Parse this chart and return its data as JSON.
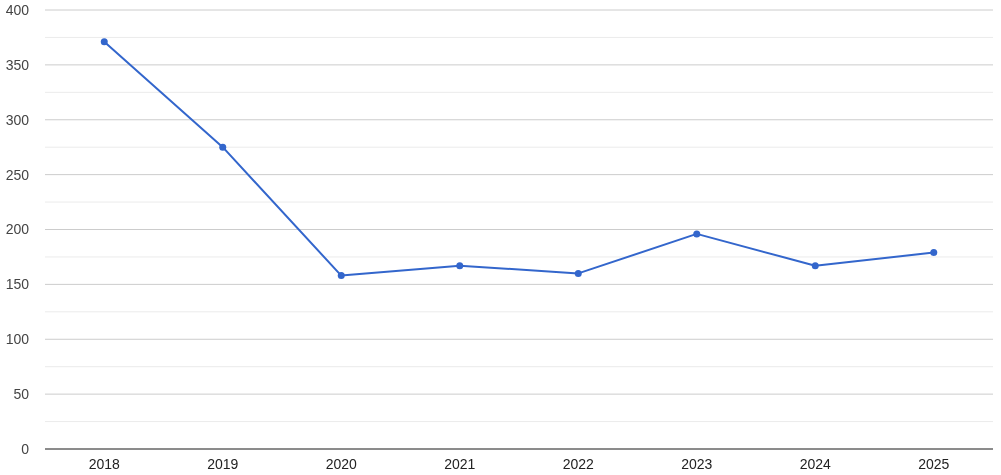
{
  "chart_data": {
    "type": "line",
    "categories": [
      "2018",
      "2019",
      "2020",
      "2021",
      "2022",
      "2023",
      "2024",
      "2025"
    ],
    "series": [
      {
        "color": "#3366cc",
        "values": [
          371,
          275,
          158,
          167,
          160,
          196,
          167,
          179
        ]
      }
    ],
    "ylim": [
      0,
      400
    ],
    "yticks": [
      0,
      {
        "value": 25,
        "label": null
      },
      50,
      {
        "value": 75,
        "label": null
      },
      100,
      {
        "value": 125,
        "label": null
      },
      150,
      {
        "value": 175,
        "label": null
      },
      200,
      {
        "value": 225,
        "label": null
      },
      250,
      {
        "value": 275,
        "label": null
      },
      300,
      {
        "value": 325,
        "label": null
      },
      350,
      {
        "value": 375,
        "label": null
      },
      400
    ],
    "grid": true,
    "marker": "circle",
    "line_style": "solid"
  }
}
